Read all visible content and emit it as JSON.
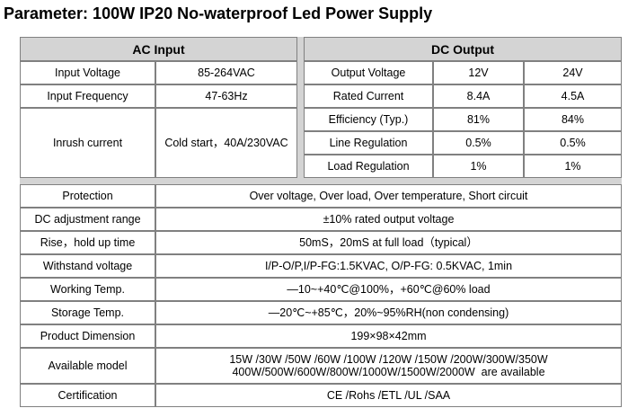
{
  "title": "Parameter: 100W IP20 No-waterproof Led Power Supply",
  "ac": {
    "header": "AC Input",
    "rows": [
      {
        "label": "Input Voltage",
        "value": "85-264VAC"
      },
      {
        "label": "Input Frequency",
        "value": "47-63Hz"
      },
      {
        "label": "Inrush current",
        "value": "Cold start，40A/230VAC"
      }
    ]
  },
  "dc": {
    "header": "DC Output",
    "rows": [
      {
        "label": "Output Voltage",
        "v12": "12V",
        "v24": "24V"
      },
      {
        "label": "Rated Current",
        "v12": "8.4A",
        "v24": "4.5A"
      },
      {
        "label": "Efficiency (Typ.)",
        "v12": "81%",
        "v24": "84%"
      },
      {
        "label": "Line Regulation",
        "v12": "0.5%",
        "v24": "0.5%"
      },
      {
        "label": "Load Regulation",
        "v12": "1%",
        "v24": "1%"
      }
    ]
  },
  "specs": [
    {
      "label": "Protection",
      "value": "Over voltage, Over load, Over temperature, Short circuit"
    },
    {
      "label": "DC adjustment range",
      "value": "±10% rated output voltage"
    },
    {
      "label": "Rise，hold up time",
      "value": "50mS，20mS at full load（typical）"
    },
    {
      "label": "Withstand voltage",
      "value": "I/P-O/P,I/P-FG:1.5KVAC, O/P-FG: 0.5KVAC, 1min"
    },
    {
      "label": "Working Temp.",
      "value": "—10~+40℃@100%，+60℃@60% load"
    },
    {
      "label": "Storage Temp.",
      "value": "—20℃~+85℃，20%~95%RH(non condensing)"
    },
    {
      "label": "Product Dimension",
      "value": "199×98×42mm"
    },
    {
      "label": "Available model",
      "value_line1": "15W /30W /50W /60W /100W /120W /150W /200W/300W/350W",
      "value_line2": "400W/500W/600W/800W/1000W/1500W/2000W  are available"
    },
    {
      "label": "Certification",
      "value": "CE /Rohs /ETL /UL /SAA"
    }
  ]
}
